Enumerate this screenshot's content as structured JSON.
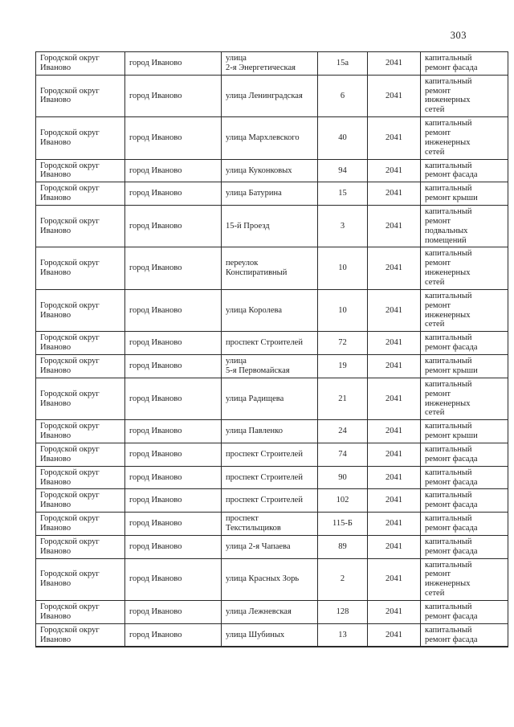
{
  "page": {
    "number": "303"
  },
  "table": {
    "rows": [
      {
        "district": "Городской округ\nИваново",
        "city": "город Иваново",
        "street": "улица\n2-я Энергетическая",
        "house": "15а",
        "year": "2041",
        "work": "капитальный\nремонт фасада"
      },
      {
        "district": "Городской округ\nИваново",
        "city": "город Иваново",
        "street": "улица Ленинградская",
        "house": "6",
        "year": "2041",
        "work": "капитальный\nремонт\nинженерных\nсетей"
      },
      {
        "district": "Городской округ\nИваново",
        "city": "город Иваново",
        "street": "улица Мархлевского",
        "house": "40",
        "year": "2041",
        "work": "капитальный\nремонт\nинженерных\nсетей"
      },
      {
        "district": "Городской округ\nИваново",
        "city": "город Иваново",
        "street": "улица Куконковых",
        "house": "94",
        "year": "2041",
        "work": "капитальный\nремонт фасада"
      },
      {
        "district": "Городской округ\nИваново",
        "city": "город Иваново",
        "street": "улица Батурина",
        "house": "15",
        "year": "2041",
        "work": "капитальный\nремонт крыши"
      },
      {
        "district": "Городской округ\nИваново",
        "city": "город Иваново",
        "street": "15-й Проезд",
        "house": "3",
        "year": "2041",
        "work": "капитальный\nремонт\nподвальных\nпомещений"
      },
      {
        "district": "Городской округ\nИваново",
        "city": "город Иваново",
        "street": "переулок\nКонспиративный",
        "house": "10",
        "year": "2041",
        "work": "капитальный\nремонт\nинженерных\nсетей"
      },
      {
        "district": "Городской округ\nИваново",
        "city": "город Иваново",
        "street": "улица Королева",
        "house": "10",
        "year": "2041",
        "work": "капитальный\nремонт\nинженерных\nсетей"
      },
      {
        "district": "Городской округ\nИваново",
        "city": "город Иваново",
        "street": "проспект Строителей",
        "house": "72",
        "year": "2041",
        "work": "капитальный\nремонт фасада"
      },
      {
        "district": "Городской округ\nИваново",
        "city": "город Иваново",
        "street": "улица\n5-я Первомайская",
        "house": "19",
        "year": "2041",
        "work": "капитальный\nремонт крыши"
      },
      {
        "district": "Городской округ\nИваново",
        "city": "город Иваново",
        "street": "улица Радищева",
        "house": "21",
        "year": "2041",
        "work": "капитальный\nремонт\nинженерных\nсетей"
      },
      {
        "district": "Городской округ\nИваново",
        "city": "город Иваново",
        "street": "улица Павленко",
        "house": "24",
        "year": "2041",
        "work": "капитальный\nремонт крыши"
      },
      {
        "district": "Городской округ\nИваново",
        "city": "город Иваново",
        "street": "проспект Строителей",
        "house": "74",
        "year": "2041",
        "work": "капитальный\nремонт фасада"
      },
      {
        "district": "Городской округ\nИваново",
        "city": "город Иваново",
        "street": "проспект Строителей",
        "house": "90",
        "year": "2041",
        "work": "капитальный\nремонт фасада"
      },
      {
        "district": "Городской округ\nИваново",
        "city": "город Иваново",
        "street": "проспект Строителей",
        "house": "102",
        "year": "2041",
        "work": "капитальный\nремонт фасада"
      },
      {
        "district": "Городской округ\nИваново",
        "city": "город Иваново",
        "street": "проспект\nТекстильщиков",
        "house": "115-Б",
        "year": "2041",
        "work": "капитальный\nремонт фасада"
      },
      {
        "district": "Городской округ\nИваново",
        "city": "город Иваново",
        "street": "улица 2-я Чапаева",
        "house": "89",
        "year": "2041",
        "work": "капитальный\nремонт фасада"
      },
      {
        "district": "Городской округ\nИваново",
        "city": "город Иваново",
        "street": "улица Красных Зорь",
        "house": "2",
        "year": "2041",
        "work": "капитальный\nремонт\nинженерных\nсетей"
      },
      {
        "district": "Городской округ\nИваново",
        "city": "город Иваново",
        "street": "улица Лежневская",
        "house": "128",
        "year": "2041",
        "work": "капитальный\nремонт фасада"
      },
      {
        "district": "Городской округ\nИваново",
        "city": "город Иваново",
        "street": "улица Шубиных",
        "house": "13",
        "year": "2041",
        "work": "капитальный\nремонт фасада"
      }
    ]
  }
}
